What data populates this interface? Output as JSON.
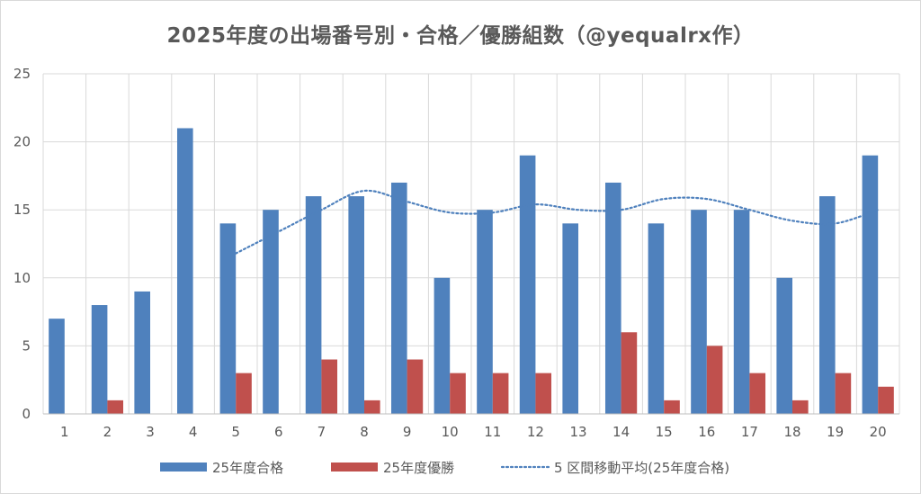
{
  "chart_data": {
    "type": "bar",
    "title": "2025年度の出場番号別・合格／優勝組数（@yequalrx作）",
    "categories": [
      "1",
      "2",
      "3",
      "4",
      "5",
      "6",
      "7",
      "8",
      "9",
      "10",
      "11",
      "12",
      "13",
      "14",
      "15",
      "16",
      "17",
      "18",
      "19",
      "20"
    ],
    "ylim": [
      0,
      25
    ],
    "yticks": [
      0,
      5,
      10,
      15,
      20,
      25
    ],
    "grid": true,
    "legend_position": "bottom",
    "series": [
      {
        "name": "25年度合格",
        "type": "bar",
        "color": "#4f81bd",
        "values": [
          7,
          8,
          9,
          21,
          14,
          15,
          16,
          16,
          17,
          10,
          15,
          19,
          14,
          17,
          14,
          15,
          15,
          10,
          16,
          19
        ]
      },
      {
        "name": "25年度優勝",
        "type": "bar",
        "color": "#c0504d",
        "values": [
          0,
          1,
          0,
          0,
          3,
          0,
          4,
          1,
          4,
          3,
          3,
          3,
          0,
          6,
          1,
          5,
          3,
          1,
          3,
          2
        ]
      },
      {
        "name": "5 区間移動平均(25年度合格)",
        "type": "line",
        "style": "dotted",
        "color": "#4f81bd",
        "values": [
          null,
          null,
          null,
          null,
          11.8,
          13.4,
          15.0,
          16.4,
          15.6,
          14.8,
          14.8,
          15.4,
          15.0,
          15.0,
          15.8,
          15.8,
          15.0,
          14.2,
          14.0,
          15.0
        ]
      }
    ]
  }
}
